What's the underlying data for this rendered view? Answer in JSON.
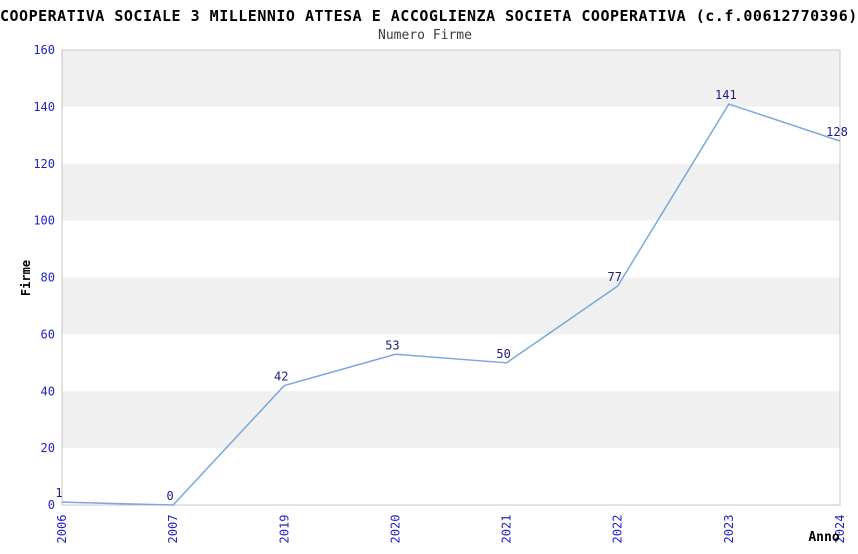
{
  "header": {
    "title": "COOPERATIVA SOCIALE 3 MILLENNIO ATTESA E ACCOGLIENZA SOCIETA COOPERATIVA (c.f.00612770396)",
    "subtitle": "Numero Firme"
  },
  "chart_data": {
    "type": "line",
    "title": "Numero Firme",
    "categories": [
      "2006",
      "2007",
      "2019",
      "2020",
      "2021",
      "2022",
      "2023",
      "2024"
    ],
    "values": [
      1,
      0,
      42,
      53,
      50,
      77,
      141,
      128
    ],
    "xlabel": "Anno",
    "ylabel": "Firme",
    "ylim": [
      0,
      160
    ],
    "ytick_step": 20,
    "yticks": [
      0,
      20,
      40,
      60,
      80,
      100,
      120,
      140,
      160
    ],
    "grid": "alternating horizontal bands",
    "legend": "none",
    "data_labels_shown": true
  },
  "colors": {
    "line": "#7aa8dc",
    "tick_label": "#2222cc",
    "data_label": "#1c1c85",
    "band_gray": "#f0f0f0",
    "band_white": "#ffffff",
    "plot_border": "#c4c4c4",
    "title_text": "#000000",
    "subtitle_text": "#3d3d3d",
    "axis_label_text": "#000000"
  }
}
